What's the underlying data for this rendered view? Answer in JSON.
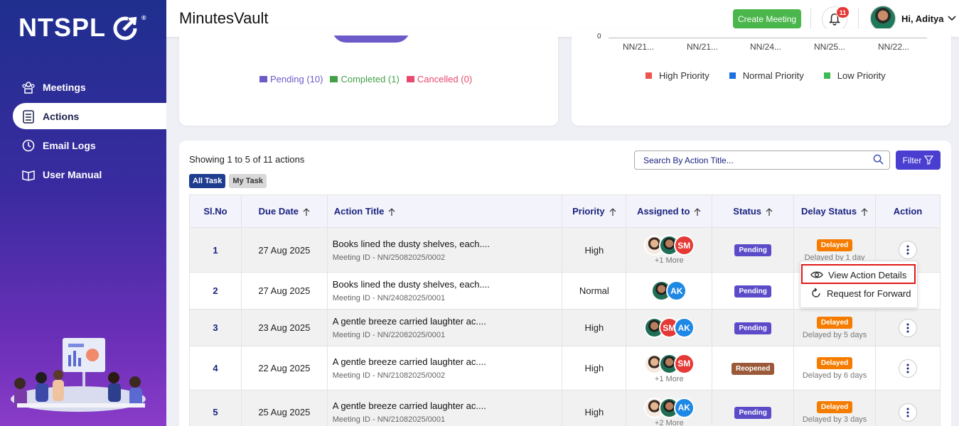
{
  "brand": {
    "logo_text": "NTSPL",
    "registered": "®"
  },
  "sidebar": {
    "items": [
      {
        "label": "Meetings",
        "icon": "meetings-icon"
      },
      {
        "label": "Actions",
        "icon": "checklist-icon",
        "active": true
      },
      {
        "label": "Email Logs",
        "icon": "history-icon"
      },
      {
        "label": "User Manual",
        "icon": "book-icon"
      }
    ]
  },
  "header": {
    "title": "MinutesVault",
    "create_label": "Create Meeting",
    "notification_count": "11",
    "greeting": "Hi, Aditya"
  },
  "status_chart": {
    "legend": [
      {
        "label": "Pending (10)",
        "color": "#6b5bc9"
      },
      {
        "label": "Completed (1)",
        "color": "#43a047"
      },
      {
        "label": "Cancelled (0)",
        "color": "#e84a6f"
      }
    ]
  },
  "chart_data": {
    "type": "bar",
    "y_zero_label": "0",
    "categories": [
      "NN/21...",
      "NN/21...",
      "NN/24...",
      "NN/25...",
      "NN/22..."
    ],
    "series": [
      {
        "name": "High Priority",
        "color": "#ef5350",
        "values": [
          0,
          0,
          0,
          0,
          0
        ]
      },
      {
        "name": "Normal Priority",
        "color": "#1e6fe0",
        "values": [
          0,
          0,
          0,
          0,
          0
        ]
      },
      {
        "name": "Low Priority",
        "color": "#3cba54",
        "values": [
          0,
          0,
          0,
          0,
          0
        ]
      }
    ]
  },
  "actions": {
    "showing": "Showing 1 to 5 of 11 actions",
    "tabs": [
      "All Task",
      "My Task"
    ],
    "search_placeholder": "Search By Action Title...",
    "filter_label": "Filter",
    "columns": [
      "Sl.No",
      "Due Date",
      "Action Title",
      "Priority",
      "Assigned to",
      "Status",
      "Delay Status",
      "Action"
    ],
    "rows": [
      {
        "sl": "1",
        "due": "27 Aug 2025",
        "title": "Books lined the dusty shelves, each....",
        "meeting": "Meeting ID - NN/25082025/0002",
        "priority": "High",
        "avatars": [
          "photo",
          "photo",
          "SM"
        ],
        "more": "+1 More",
        "status": "Pending",
        "delayed": "Delayed",
        "delay_text": "Delayed by 1 day"
      },
      {
        "sl": "2",
        "due": "27 Aug 2025",
        "title": "Books lined the dusty shelves, each....",
        "meeting": "Meeting ID - NN/24082025/0001",
        "priority": "Normal",
        "avatars": [
          "photo",
          "AK"
        ],
        "more": "",
        "status": "Pending",
        "delayed": "",
        "delay_text": ""
      },
      {
        "sl": "3",
        "due": "23 Aug 2025",
        "title": "A gentle breeze carried laughter ac....",
        "meeting": "Meeting ID - NN/22082025/0001",
        "priority": "High",
        "avatars": [
          "photo",
          "SM",
          "AK"
        ],
        "more": "",
        "status": "Pending",
        "delayed": "Delayed",
        "delay_text": "Delayed by 5 days"
      },
      {
        "sl": "4",
        "due": "22 Aug 2025",
        "title": "A gentle breeze carried laughter ac....",
        "meeting": "Meeting ID - NN/21082025/0002",
        "priority": "High",
        "avatars": [
          "photo",
          "photo",
          "SM"
        ],
        "more": "+1 More",
        "status": "Reopened",
        "delayed": "Delayed",
        "delay_text": "Delayed by 6 days"
      },
      {
        "sl": "5",
        "due": "25 Aug 2025",
        "title": "A gentle breeze carried laughter ac....",
        "meeting": "Meeting ID - NN/21082025/0001",
        "priority": "High",
        "avatars": [
          "photo",
          "photo",
          "AK"
        ],
        "more": "+2 More",
        "status": "Pending",
        "delayed": "Delayed",
        "delay_text": "Delayed by 3 days"
      }
    ]
  },
  "context_menu": {
    "items": [
      {
        "label": "View Action Details",
        "icon": "eye-icon"
      },
      {
        "label": "Request for Forward",
        "icon": "refresh-icon"
      }
    ]
  }
}
